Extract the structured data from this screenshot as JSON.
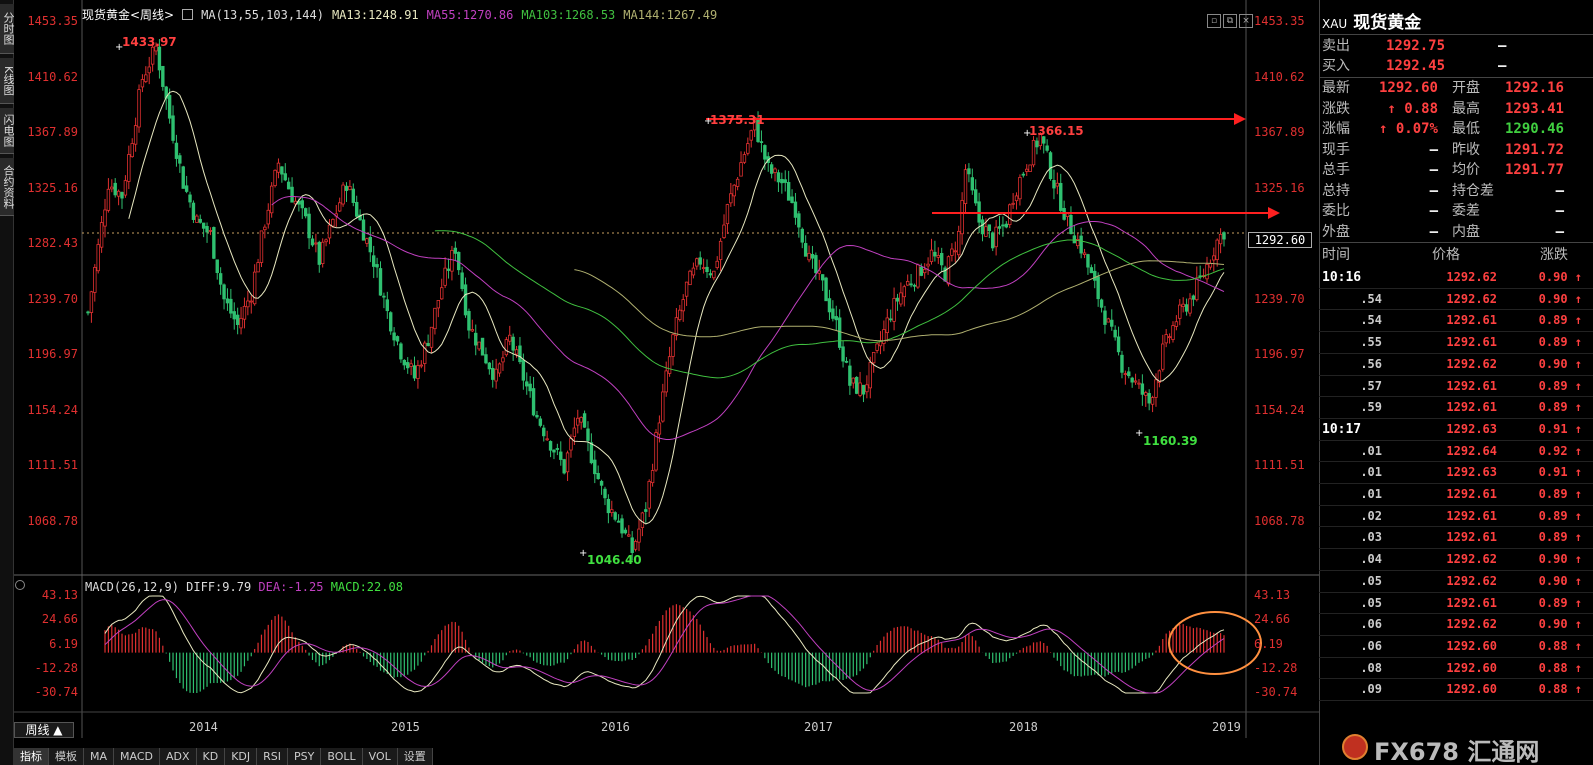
{
  "side_tabs": [
    "分时图",
    "K线图",
    "闪电图",
    "合约资料"
  ],
  "header": {
    "instrument": "现货黄金<周线>",
    "ma_params": "MA(13,55,103,144)",
    "ma13": "MA13:1248.91",
    "ma55": "MA55:1270.86",
    "ma103": "MA103:1268.53",
    "ma144": "MA144:1267.49"
  },
  "colors": {
    "up": "#e03030",
    "down": "#2fc070",
    "ma13": "#e8e8c0",
    "ma55": "#c040c0",
    "ma103": "#40c040",
    "ma144": "#b0b070",
    "arrow": "#ff2020",
    "circle": "#ff9040"
  },
  "price_axis": [
    "1453.35",
    "1410.62",
    "1367.89",
    "1325.16",
    "1282.43",
    "1239.70",
    "1196.97",
    "1154.24",
    "1111.51",
    "1068.78"
  ],
  "current_price_tag": "1292.60",
  "annotations": {
    "high_1": "1433.97",
    "low_1": "1046.40",
    "high_2": "1375.31",
    "high_3": "1366.15",
    "low_2": "1160.39"
  },
  "macd": {
    "title": "MACD(26,12,9)",
    "diff": "DIFF:9.79",
    "dea": "DEA:-1.25",
    "macd": "MACD:22.08",
    "axis": [
      "43.13",
      "24.66",
      "6.19",
      "-12.28",
      "-30.74"
    ]
  },
  "x_axis": [
    "2014",
    "2015",
    "2016",
    "2017",
    "2018",
    "2019"
  ],
  "bottom": {
    "period_label": "周线 ▲",
    "tabs": [
      "指标",
      "模板",
      "MA",
      "MACD",
      "ADX",
      "KD",
      "KDJ",
      "RSI",
      "PSY",
      "BOLL",
      "VOL",
      "设置"
    ]
  },
  "panel": {
    "code": "XAU",
    "name": "现货黄金",
    "sell_label": "卖出",
    "sell_value": "1292.75",
    "sell_extra": "–",
    "buy_label": "买入",
    "buy_value": "1292.45",
    "buy_extra": "–",
    "rows": [
      {
        "l1": "最新",
        "v1": "1292.60",
        "l2": "开盘",
        "v2": "1292.16"
      },
      {
        "l1": "涨跌",
        "v1": "↑ 0.88",
        "l2": "最高",
        "v2": "1293.41"
      },
      {
        "l1": "涨幅",
        "v1": "↑ 0.07%",
        "l2": "最低",
        "v2": "1290.46"
      },
      {
        "l1": "现手",
        "v1": "–",
        "l2": "昨收",
        "v2": "1291.72"
      },
      {
        "l1": "总手",
        "v1": "–",
        "l2": "均价",
        "v2": "1291.77"
      },
      {
        "l1": "总持",
        "v1": "–",
        "l2": "持仓差",
        "v2": "–"
      },
      {
        "l1": "委比",
        "v1": "–",
        "l2": "委差",
        "v2": "–"
      },
      {
        "l1": "外盘",
        "v1": "–",
        "l2": "内盘",
        "v2": "–"
      }
    ],
    "tick_headers": [
      "时间",
      "价格",
      "涨跌"
    ],
    "ticks": [
      {
        "t": "10:16",
        "p": "1292.62",
        "c": "0.90 ↑"
      },
      {
        "t": ".54",
        "p": "1292.62",
        "c": "0.90 ↑"
      },
      {
        "t": ".54",
        "p": "1292.61",
        "c": "0.89 ↑"
      },
      {
        "t": ".55",
        "p": "1292.61",
        "c": "0.89 ↑"
      },
      {
        "t": ".56",
        "p": "1292.62",
        "c": "0.90 ↑"
      },
      {
        "t": ".57",
        "p": "1292.61",
        "c": "0.89 ↑"
      },
      {
        "t": ".59",
        "p": "1292.61",
        "c": "0.89 ↑"
      },
      {
        "t": "10:17",
        "p": "1292.63",
        "c": "0.91 ↑"
      },
      {
        "t": ".01",
        "p": "1292.64",
        "c": "0.92 ↑"
      },
      {
        "t": ".01",
        "p": "1292.63",
        "c": "0.91 ↑"
      },
      {
        "t": ".01",
        "p": "1292.61",
        "c": "0.89 ↑"
      },
      {
        "t": ".02",
        "p": "1292.61",
        "c": "0.89 ↑"
      },
      {
        "t": ".03",
        "p": "1292.61",
        "c": "0.89 ↑"
      },
      {
        "t": ".04",
        "p": "1292.62",
        "c": "0.90 ↑"
      },
      {
        "t": ".05",
        "p": "1292.62",
        "c": "0.90 ↑"
      },
      {
        "t": ".05",
        "p": "1292.61",
        "c": "0.89 ↑"
      },
      {
        "t": ".06",
        "p": "1292.62",
        "c": "0.90 ↑"
      },
      {
        "t": ".06",
        "p": "1292.60",
        "c": "0.88 ↑"
      },
      {
        "t": ".08",
        "p": "1292.60",
        "c": "0.88 ↑"
      },
      {
        "t": ".09",
        "p": "1292.60",
        "c": "0.88 ↑"
      }
    ]
  },
  "watermark": "FX678 汇通网"
}
